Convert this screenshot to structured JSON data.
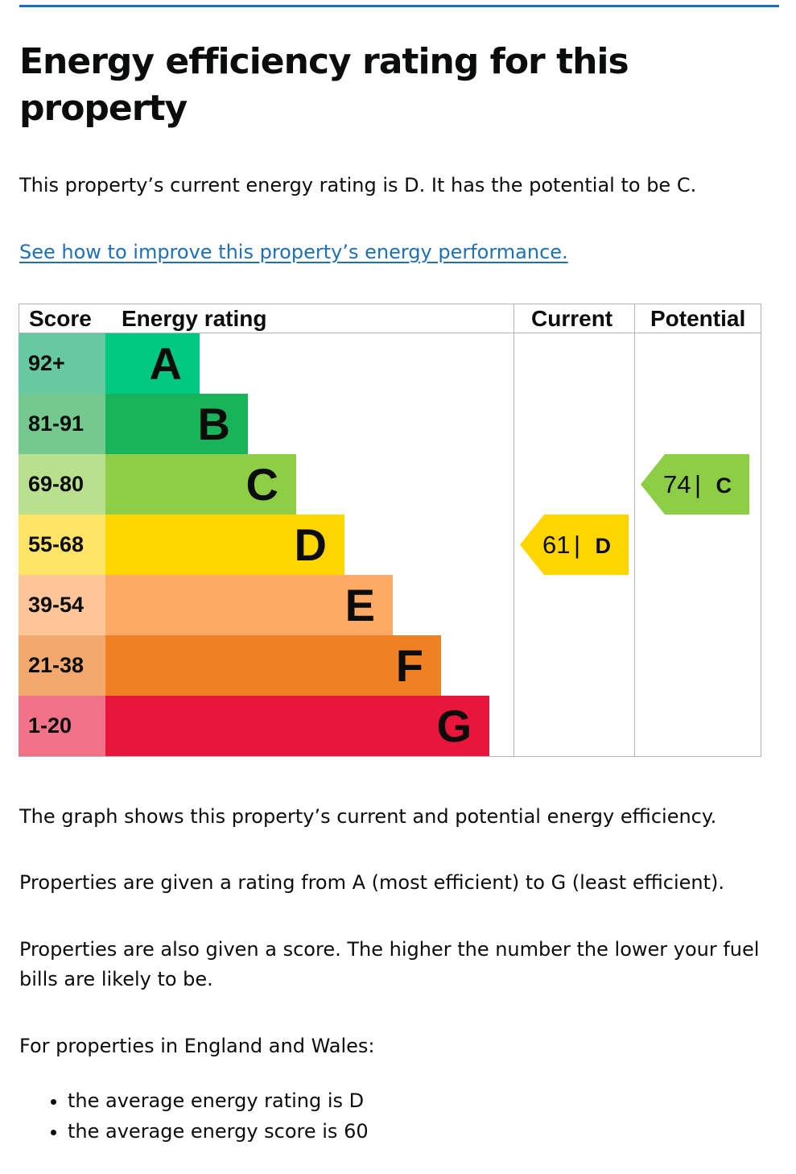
{
  "page": {
    "title": "Energy efficiency rating for this property",
    "summary": "This property’s current energy rating is D. It has the potential to be C.",
    "improve_link": "See how to improve this property’s energy performance.",
    "graph_caption": "The graph shows this property’s current and potential energy efficiency.",
    "rating_explain": "Properties are given a rating from A (most efficient) to G (least efficient).",
    "score_explain": "Properties are also given a score. The higher the number the lower your fuel bills are likely to be.",
    "region_intro": "For properties in England and Wales:",
    "bullets": [
      "the average energy rating is D",
      "the average energy score is 60"
    ]
  },
  "chart_data": {
    "type": "bar",
    "headers": {
      "score": "Score",
      "rating": "Energy rating",
      "current": "Current",
      "potential": "Potential"
    },
    "bands": [
      {
        "letter": "A",
        "range": "92+",
        "color": "#00c781",
        "score_bg": "#66c9a2"
      },
      {
        "letter": "B",
        "range": "81-91",
        "color": "#19b459",
        "score_bg": "#74c98f"
      },
      {
        "letter": "C",
        "range": "69-80",
        "color": "#8dce46",
        "score_bg": "#b9e08e"
      },
      {
        "letter": "D",
        "range": "55-68",
        "color": "#ffd500",
        "score_bg": "#ffe466"
      },
      {
        "letter": "E",
        "range": "39-54",
        "color": "#fcaa65",
        "score_bg": "#fdc598"
      },
      {
        "letter": "F",
        "range": "21-38",
        "color": "#ef8023",
        "score_bg": "#f3a86d"
      },
      {
        "letter": "G",
        "range": "1-20",
        "color": "#e9153b",
        "score_bg": "#f0738a"
      }
    ],
    "current": {
      "score": "61",
      "band": "D",
      "color": "#ffd500"
    },
    "potential": {
      "score": "74",
      "band": "C",
      "color": "#8dce46"
    },
    "separator": "|"
  }
}
